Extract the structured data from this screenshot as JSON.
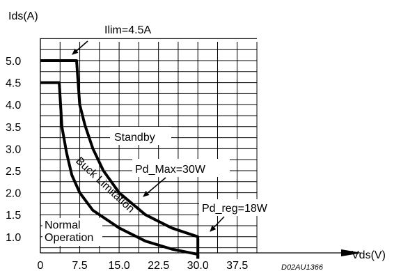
{
  "chart_data": {
    "type": "line",
    "ylabel": "Ids(A)",
    "xlabel": "Vds(V)",
    "figure_code": "D02AU1366",
    "x_ticks": [
      "0",
      "7.5",
      "15.0",
      "22.5",
      "30.0",
      "37.5"
    ],
    "y_ticks": [
      "5.0",
      "4.5",
      "4.0",
      "3.5",
      "3.0",
      "2.5",
      "2.0",
      "1.5",
      "1.0"
    ],
    "xlim": [
      0,
      45
    ],
    "ylim": [
      0.5,
      5.5
    ],
    "grid": true,
    "annotations": {
      "ilim": "Ilim=4.5A",
      "standby": "Standby",
      "pd_max": "Pd_Max=30W",
      "buck": "Buck Limitation",
      "pd_reg": "Pd_reg=18W",
      "normal_line1": "Normal",
      "normal_line2": "Operation"
    },
    "series": [
      {
        "values": [
          [
            0,
            5.0
          ],
          [
            6.9,
            5.0
          ],
          [
            7.5,
            4.0
          ],
          [
            8.5,
            3.53
          ],
          [
            10,
            3.0
          ],
          [
            12,
            2.5
          ],
          [
            15,
            2.0
          ],
          [
            20,
            1.5
          ],
          [
            25,
            1.2
          ],
          [
            30,
            1.0
          ],
          [
            30,
            0.5
          ]
        ]
      },
      {
        "values": [
          [
            0,
            4.5
          ],
          [
            3.6,
            4.5
          ],
          [
            4.1,
            3.5
          ],
          [
            5,
            2.9
          ],
          [
            6,
            2.4
          ],
          [
            7.5,
            2.0
          ],
          [
            10,
            1.6
          ],
          [
            15,
            1.2
          ],
          [
            20,
            0.9
          ],
          [
            25,
            0.72
          ],
          [
            30,
            0.6
          ],
          [
            30,
            0.5
          ]
        ]
      }
    ]
  }
}
